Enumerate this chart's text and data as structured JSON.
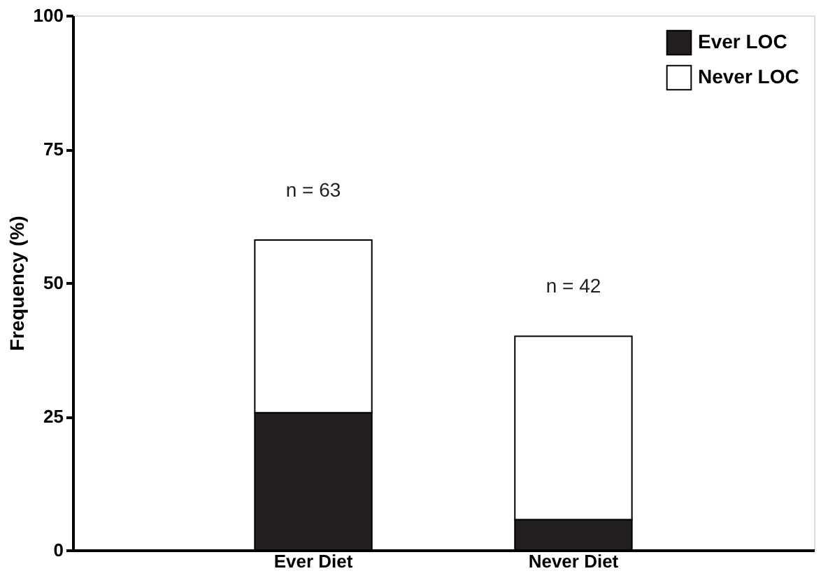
{
  "chart_data": {
    "type": "bar",
    "stacked": true,
    "ylabel": "Frequency (%)",
    "categories": [
      "Ever Diet",
      "Never Diet"
    ],
    "series": [
      {
        "name": "Ever LOC",
        "color": "#231f20",
        "values": [
          25.7,
          5.7
        ]
      },
      {
        "name": "Never LOC",
        "color": "#ffffff",
        "values": [
          32.3,
          34.3
        ]
      }
    ],
    "ylim": [
      0,
      100
    ],
    "yticks": [
      0,
      25,
      50,
      75,
      100
    ],
    "grid": false,
    "legend": "top right",
    "annotations": [
      "n = 63",
      "n = 42"
    ]
  }
}
